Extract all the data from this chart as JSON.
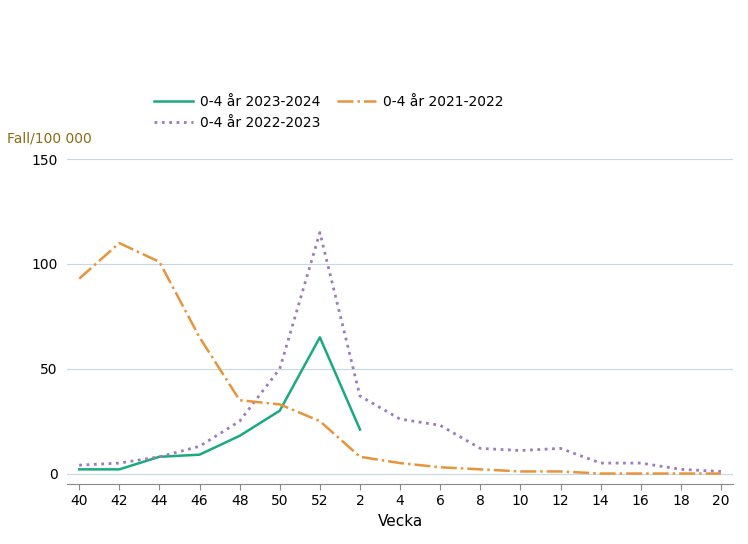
{
  "xlabel": "Vecka",
  "ylabel": "Fall/100 000",
  "ylim": [
    -5,
    155
  ],
  "yticks": [
    0,
    50,
    100,
    150
  ],
  "x_labels": [
    "40",
    "42",
    "44",
    "46",
    "48",
    "50",
    "52",
    "2",
    "4",
    "6",
    "8",
    "10",
    "12",
    "14",
    "16",
    "18",
    "20"
  ],
  "x_positions": [
    0,
    1,
    2,
    3,
    4,
    5,
    6,
    7,
    8,
    9,
    10,
    11,
    12,
    13,
    14,
    15,
    16
  ],
  "series": [
    {
      "label": "0-4 år 2023-2024",
      "color": "#1aaa80",
      "linestyle": "solid",
      "linewidth": 1.8,
      "x": [
        0,
        1,
        2,
        3,
        4,
        5,
        6,
        7
      ],
      "y": [
        2,
        2,
        8,
        9,
        18,
        30,
        65,
        21
      ]
    },
    {
      "label": "0-4 år 2022-2023",
      "color": "#9b7cbf",
      "linestyle": "dotted",
      "linewidth": 2.0,
      "x": [
        0,
        1,
        2,
        3,
        4,
        5,
        6,
        7,
        8,
        9,
        10,
        11,
        12,
        13,
        14,
        15,
        16
      ],
      "y": [
        4,
        5,
        8,
        13,
        25,
        50,
        115,
        37,
        26,
        23,
        12,
        11,
        12,
        5,
        5,
        2,
        1
      ]
    },
    {
      "label": "0-4 år 2021-2022",
      "color": "#e8943a",
      "linestyle": "dashdot",
      "linewidth": 1.8,
      "x": [
        0,
        1,
        2,
        3,
        4,
        5,
        6,
        7,
        8,
        9,
        10,
        11,
        12,
        13,
        14,
        15,
        16
      ],
      "y": [
        93,
        110,
        101,
        65,
        35,
        33,
        25,
        8,
        5,
        3,
        2,
        1,
        1,
        0,
        0,
        0,
        0
      ]
    }
  ],
  "background_color": "#ffffff",
  "grid_color": "#c8d8e0"
}
